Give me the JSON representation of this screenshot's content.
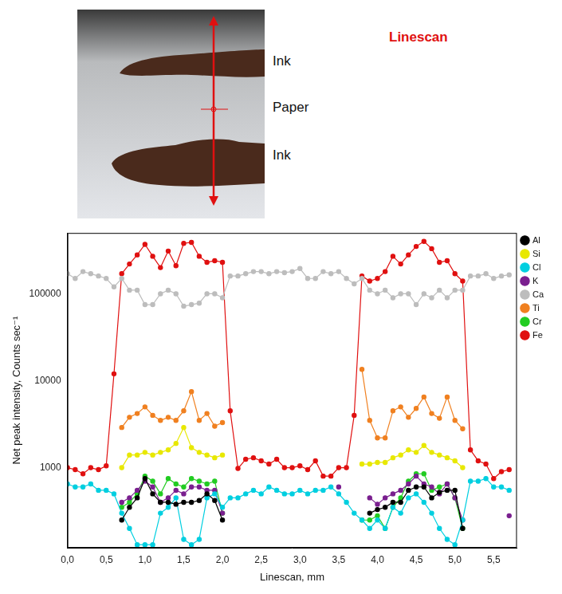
{
  "image": {
    "title": "Linescan",
    "labels": [
      "Ink",
      "Paper",
      "Ink"
    ]
  },
  "chart_data": {
    "type": "line",
    "x_label": "Linescan, mm",
    "y_label": "Net peak intensity, Counts sec⁻¹",
    "log": "y",
    "grid": false,
    "legend": "right",
    "marker": "circle",
    "xlim": [
      0,
      5.8
    ],
    "xticks": [
      {
        "value": 0,
        "label": "0,0"
      },
      {
        "value": 0.5,
        "label": "0,5"
      },
      {
        "value": 1,
        "label": "1,0"
      },
      {
        "value": 1.5,
        "label": "1,5"
      },
      {
        "value": 2,
        "label": "2,0"
      },
      {
        "value": 2.5,
        "label": "2,5"
      },
      {
        "value": 3,
        "label": "3,0"
      },
      {
        "value": 3.5,
        "label": "3,5"
      },
      {
        "value": 4,
        "label": "4,0"
      },
      {
        "value": 4.5,
        "label": "4,5"
      },
      {
        "value": 5,
        "label": "5,0"
      },
      {
        "value": 5.5,
        "label": "5,5"
      }
    ],
    "ylim": [
      120,
      500000
    ],
    "yticks": [
      1000,
      10000,
      100000
    ],
    "x": [
      0.0,
      0.1,
      0.2,
      0.3,
      0.4,
      0.5,
      0.6,
      0.7,
      0.8,
      0.9,
      1.0,
      1.1,
      1.2,
      1.3,
      1.4,
      1.5,
      1.6,
      1.7,
      1.8,
      1.9,
      2.0,
      2.1,
      2.2,
      2.3,
      2.4,
      2.5,
      2.6,
      2.7,
      2.8,
      2.9,
      3.0,
      3.1,
      3.2,
      3.3,
      3.4,
      3.5,
      3.6,
      3.7,
      3.8,
      3.9,
      4.0,
      4.1,
      4.2,
      4.3,
      4.4,
      4.5,
      4.6,
      4.7,
      4.8,
      4.9,
      5.0,
      5.1,
      5.2,
      5.3,
      5.4,
      5.5,
      5.6,
      5.7
    ],
    "series": [
      {
        "name": "Al",
        "color": "#000000",
        "values": [
          null,
          null,
          null,
          null,
          null,
          null,
          null,
          250,
          350,
          450,
          750,
          500,
          400,
          400,
          380,
          400,
          400,
          420,
          500,
          420,
          250,
          null,
          null,
          null,
          null,
          null,
          null,
          null,
          null,
          null,
          null,
          null,
          null,
          null,
          null,
          null,
          null,
          null,
          null,
          300,
          330,
          350,
          400,
          400,
          550,
          600,
          600,
          450,
          520,
          550,
          550,
          200,
          null,
          null,
          null,
          null,
          null,
          null
        ]
      },
      {
        "name": "Si",
        "color": "#e8e800",
        "values": [
          null,
          null,
          null,
          null,
          null,
          null,
          null,
          1000,
          1400,
          1400,
          1500,
          1400,
          1500,
          1600,
          1900,
          2900,
          1700,
          1500,
          1400,
          1300,
          1400,
          null,
          null,
          null,
          null,
          null,
          null,
          null,
          null,
          null,
          null,
          null,
          null,
          null,
          null,
          null,
          null,
          null,
          1100,
          1100,
          1150,
          1150,
          1300,
          1400,
          1600,
          1500,
          1800,
          1500,
          1400,
          1300,
          1200,
          1000,
          null,
          null,
          null,
          null,
          null,
          null
        ]
      },
      {
        "name": "Cl",
        "color": "#00cfe0",
        "values": [
          650,
          600,
          600,
          650,
          550,
          550,
          500,
          300,
          200,
          130,
          130,
          130,
          300,
          350,
          450,
          150,
          130,
          150,
          450,
          500,
          350,
          450,
          450,
          500,
          550,
          500,
          600,
          550,
          500,
          500,
          550,
          500,
          550,
          550,
          600,
          500,
          400,
          300,
          250,
          200,
          250,
          200,
          350,
          300,
          450,
          500,
          400,
          300,
          200,
          150,
          130,
          250,
          700,
          700,
          750,
          600,
          600,
          550
        ]
      },
      {
        "name": "K",
        "color": "#7a1f8f",
        "values": [
          null,
          null,
          null,
          null,
          null,
          null,
          null,
          400,
          450,
          550,
          700,
          600,
          400,
          450,
          550,
          500,
          600,
          600,
          550,
          550,
          300,
          null,
          null,
          null,
          null,
          null,
          null,
          null,
          null,
          null,
          null,
          null,
          null,
          null,
          null,
          600,
          null,
          null,
          null,
          450,
          380,
          450,
          500,
          550,
          650,
          800,
          650,
          600,
          500,
          650,
          450,
          250,
          null,
          null,
          null,
          null,
          null,
          280
        ]
      },
      {
        "name": "Ca",
        "color": "#bdbdbd",
        "values": [
          170000,
          150000,
          180000,
          170000,
          160000,
          150000,
          120000,
          150000,
          110000,
          110000,
          75000,
          75000,
          100000,
          110000,
          100000,
          72000,
          75000,
          78000,
          100000,
          100000,
          90000,
          160000,
          160000,
          170000,
          180000,
          180000,
          170000,
          180000,
          175000,
          180000,
          195000,
          150000,
          150000,
          180000,
          170000,
          180000,
          150000,
          130000,
          150000,
          110000,
          100000,
          110000,
          90000,
          100000,
          100000,
          75000,
          100000,
          90000,
          110000,
          90000,
          110000,
          110000,
          160000,
          160000,
          170000,
          150000,
          160000,
          165000
        ]
      },
      {
        "name": "Ti",
        "color": "#f08020",
        "values": [
          null,
          null,
          null,
          null,
          null,
          null,
          null,
          2900,
          3800,
          4200,
          5000,
          4000,
          3500,
          3800,
          3500,
          4500,
          7500,
          3500,
          4200,
          3000,
          3300,
          null,
          null,
          null,
          null,
          null,
          null,
          null,
          null,
          null,
          null,
          null,
          null,
          null,
          null,
          null,
          null,
          null,
          13500,
          3500,
          2200,
          2200,
          4500,
          5000,
          3800,
          4800,
          6500,
          4200,
          3700,
          6500,
          3500,
          2800,
          null,
          null,
          null,
          null,
          null,
          null
        ]
      },
      {
        "name": "Cr",
        "color": "#22cc22",
        "values": [
          null,
          null,
          null,
          null,
          null,
          null,
          null,
          350,
          400,
          500,
          800,
          700,
          500,
          750,
          650,
          600,
          750,
          700,
          650,
          700,
          300,
          null,
          null,
          null,
          null,
          null,
          null,
          null,
          null,
          null,
          null,
          null,
          null,
          null,
          null,
          null,
          null,
          null,
          250,
          250,
          280,
          200,
          350,
          450,
          700,
          850,
          850,
          550,
          600,
          650,
          450,
          200,
          null,
          null,
          null,
          null,
          null,
          null
        ]
      },
      {
        "name": "Fe",
        "color": "#e01010",
        "values": [
          1000,
          950,
          850,
          1000,
          950,
          1050,
          12000,
          170000,
          220000,
          280000,
          370000,
          270000,
          200000,
          310000,
          210000,
          380000,
          390000,
          270000,
          230000,
          240000,
          230000,
          4500,
          980,
          1250,
          1300,
          1200,
          1100,
          1250,
          1000,
          1000,
          1050,
          950,
          1200,
          800,
          800,
          1000,
          1000,
          4000,
          160000,
          140000,
          150000,
          180000,
          270000,
          220000,
          280000,
          350000,
          400000,
          330000,
          230000,
          240000,
          170000,
          140000,
          1600,
          1200,
          1100,
          750,
          900,
          950
        ]
      }
    ]
  }
}
